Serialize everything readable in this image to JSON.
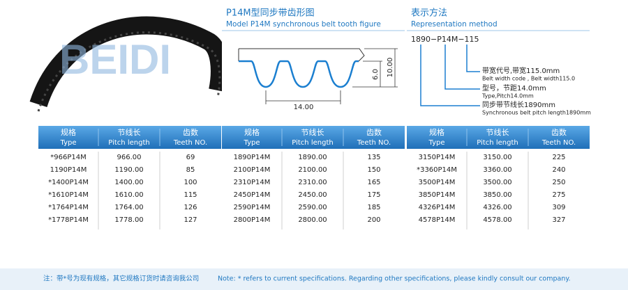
{
  "belt_image": {
    "watermark": "BEIDI"
  },
  "tooth_figure": {
    "title": "P14M型同步带齿形图",
    "subtitle": "Model P14M synchronous belt tooth figure",
    "dimensions": {
      "pitch": "14.00",
      "tooth_height": "6.0",
      "total_height": "10.00"
    }
  },
  "representation": {
    "title": "表示方法",
    "subtitle": "Representation method",
    "code": "1890−P14M−115",
    "annotations": [
      {
        "label": "带宽代号,带宽115.0mm",
        "sub": "Belt width code , Belt width115.0"
      },
      {
        "label": "型号，节距14.0mm",
        "sub": "Type,Pitch14.0mm"
      },
      {
        "label": "同步带节线长1890mm",
        "sub": "Synchronous belt pitch length1890mm"
      }
    ]
  },
  "table": {
    "columns": [
      {
        "zh": "规格",
        "en": "Type"
      },
      {
        "zh": "节线长",
        "en": "Pitch length"
      },
      {
        "zh": "齿数",
        "en": "Teeth NO."
      }
    ],
    "groups": [
      [
        [
          "*966P14M",
          "966.00",
          "69"
        ],
        [
          "1190P14M",
          "1190.00",
          "85"
        ],
        [
          "*1400P14M",
          "1400.00",
          "100"
        ],
        [
          "*1610P14M",
          "1610.00",
          "115"
        ],
        [
          "*1764P14M",
          "1764.00",
          "126"
        ],
        [
          "*1778P14M",
          "1778.00",
          "127"
        ]
      ],
      [
        [
          "1890P14M",
          "1890.00",
          "135"
        ],
        [
          "2100P14M",
          "2100.00",
          "150"
        ],
        [
          "2310P14M",
          "2310.00",
          "165"
        ],
        [
          "2450P14M",
          "2450.00",
          "175"
        ],
        [
          "2590P14M",
          "2590.00",
          "185"
        ],
        [
          "2800P14M",
          "2800.00",
          "200"
        ]
      ],
      [
        [
          "3150P14M",
          "3150.00",
          "225"
        ],
        [
          "*3360P14M",
          "3360.00",
          "240"
        ],
        [
          "3500P14M",
          "3500.00",
          "250"
        ],
        [
          "3850P14M",
          "3850.00",
          "275"
        ],
        [
          "4326P14M",
          "4326.00",
          "309"
        ],
        [
          "4578P14M",
          "4578.00",
          "327"
        ]
      ]
    ]
  },
  "note": {
    "zh": "注：带*号为现有规格，其它规格订货时请咨询我公司",
    "en": "Note:  * refers to current specifications.  Regarding other specifications, please kindly consult our company."
  }
}
